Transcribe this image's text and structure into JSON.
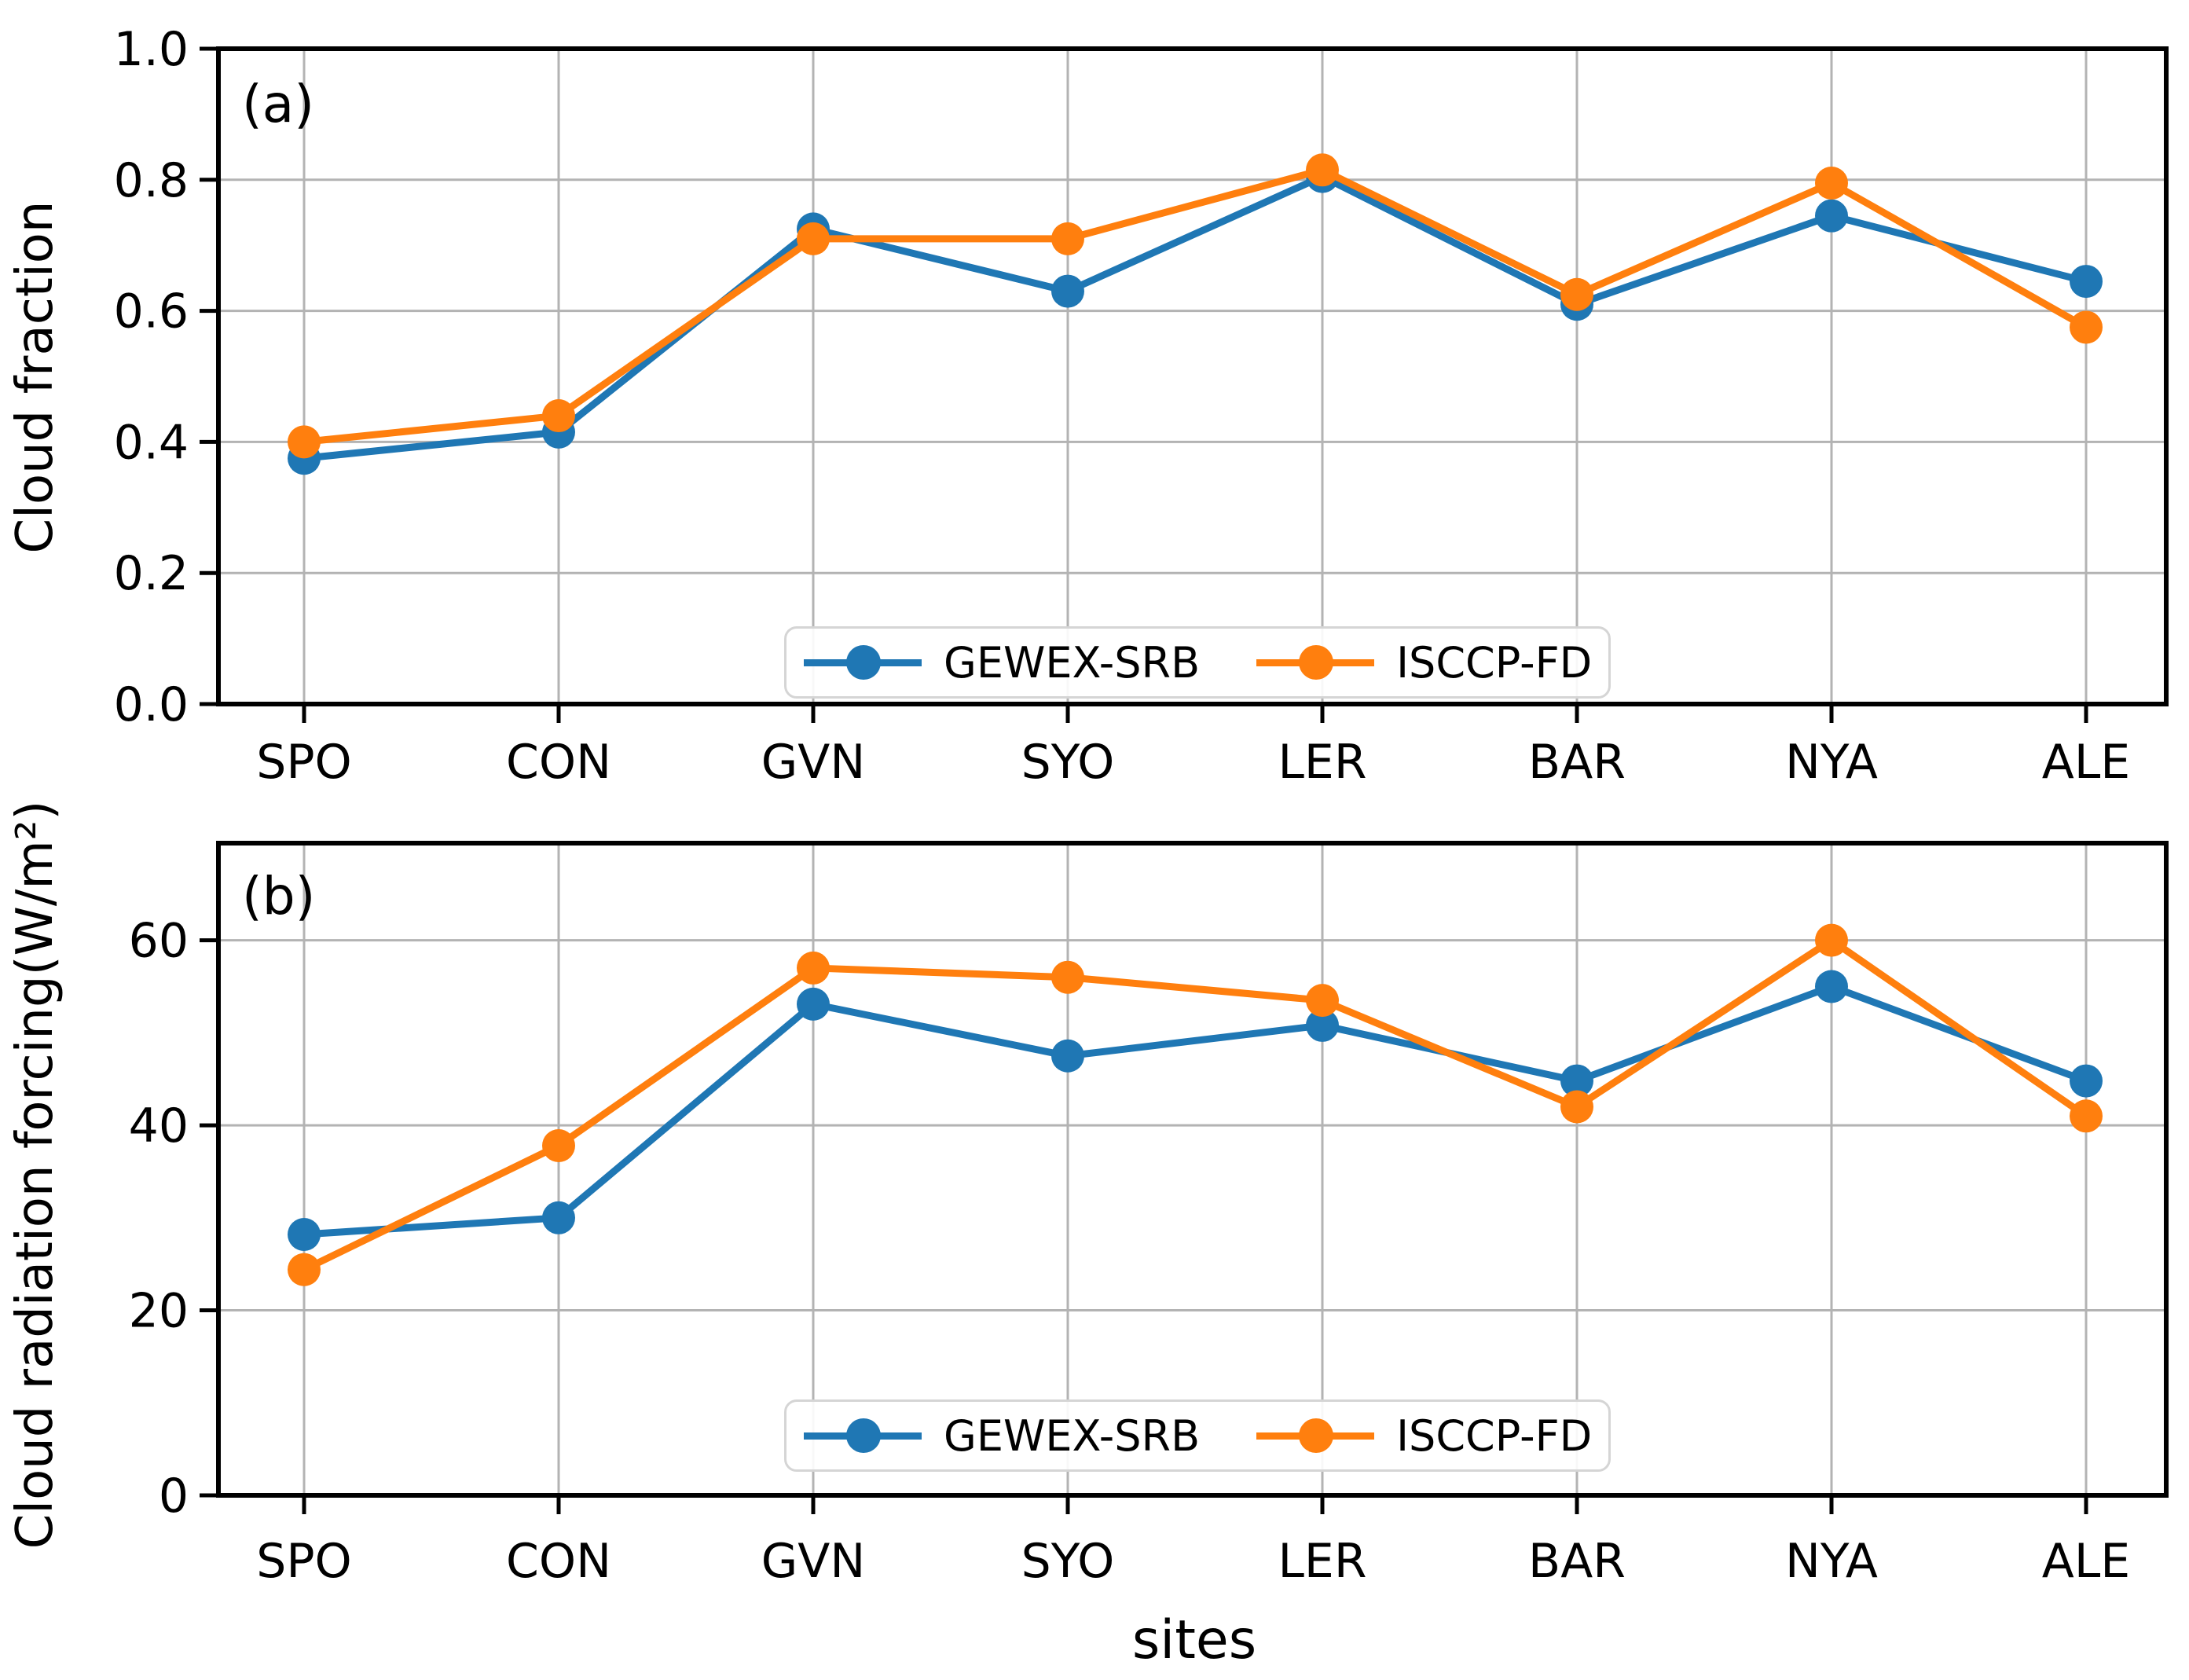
{
  "chart_data": [
    {
      "type": "line",
      "panel_label": "(a)",
      "title": "",
      "ylabel": "Cloud fraction",
      "xlabel": "",
      "categories": [
        "SPO",
        "CON",
        "GVN",
        "SYO",
        "LER",
        "BAR",
        "NYA",
        "ALE"
      ],
      "series": [
        {
          "name": "GEWEX-SRB",
          "color": "#1f77b4",
          "values": [
            0.375,
            0.415,
            0.725,
            0.63,
            0.805,
            0.61,
            0.745,
            0.645
          ]
        },
        {
          "name": "ISCCP-FD",
          "color": "#ff7f0e",
          "values": [
            0.4,
            0.44,
            0.71,
            0.71,
            0.815,
            0.625,
            0.795,
            0.575
          ]
        }
      ],
      "ylim": [
        0.0,
        1.0
      ],
      "yticks": [
        0.0,
        0.2,
        0.4,
        0.6,
        0.8,
        1.0
      ],
      "ytick_decimals": 1,
      "grid": true,
      "legend_position": "lower center"
    },
    {
      "type": "line",
      "panel_label": "(b)",
      "title": "",
      "ylabel": "Cloud radiation forcing(W/m²)",
      "xlabel": "sites",
      "categories": [
        "SPO",
        "CON",
        "GVN",
        "SYO",
        "LER",
        "BAR",
        "NYA",
        "ALE"
      ],
      "series": [
        {
          "name": "GEWEX-SRB",
          "color": "#1f77b4",
          "values": [
            28.2,
            30.0,
            53.1,
            47.5,
            50.8,
            44.8,
            55.0,
            44.8
          ]
        },
        {
          "name": "ISCCP-FD",
          "color": "#ff7f0e",
          "values": [
            24.4,
            37.8,
            57.0,
            56.0,
            53.5,
            42.0,
            60.0,
            41.0
          ]
        }
      ],
      "ylim": [
        0,
        70.5
      ],
      "yticks": [
        0,
        20,
        40,
        60
      ],
      "ytick_decimals": 0,
      "grid": true,
      "legend_position": "lower center"
    }
  ],
  "style": {
    "grid_color": "#b3b3b3",
    "spine_color": "#000000",
    "background": "#ffffff"
  }
}
